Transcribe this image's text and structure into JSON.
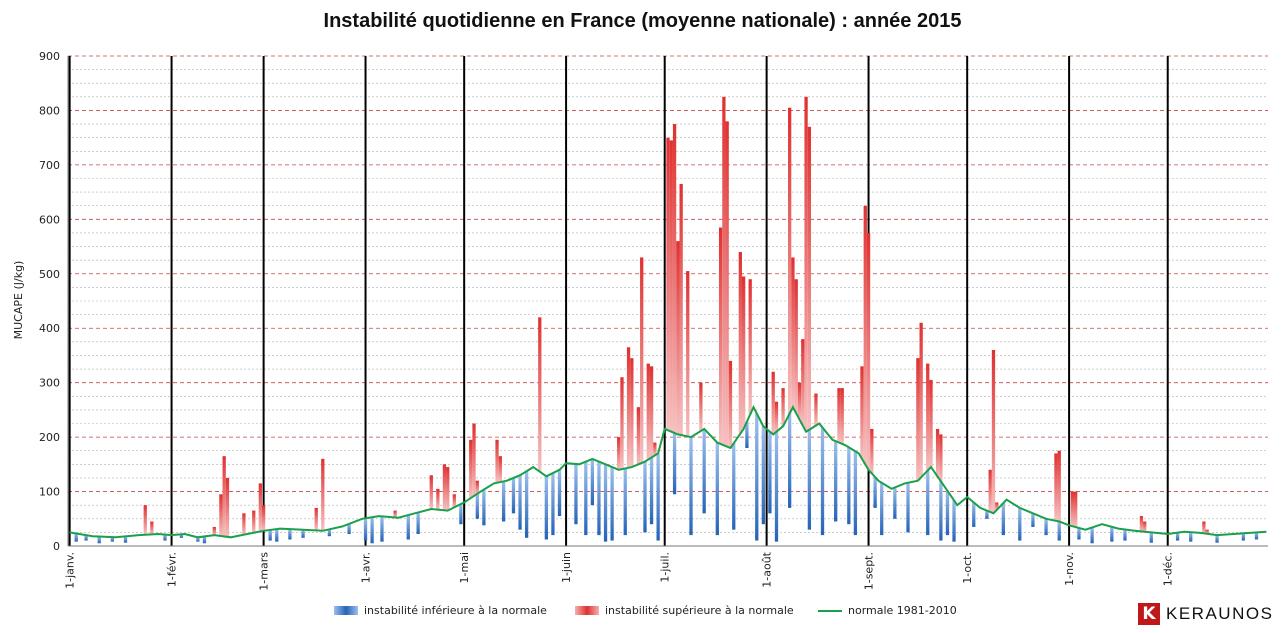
{
  "chart_data": {
    "type": "bar",
    "title": "Instabilité quotidienne en France (moyenne nationale) : année 2015",
    "ylabel": "MUCAPE (J/kg)",
    "xlabel": "",
    "ylim": [
      0,
      900
    ],
    "yticks": [
      0,
      100,
      200,
      300,
      400,
      500,
      600,
      700,
      800,
      900
    ],
    "month_labels": [
      "1-janv.",
      "1-févr.",
      "1-mars",
      "1-avr.",
      "1-mai",
      "1-juin",
      "1-juil.",
      "1-août",
      "1-sept.",
      "1-oct.",
      "1-nov.",
      "1-déc."
    ],
    "month_start_day": [
      1,
      32,
      60,
      91,
      121,
      152,
      182,
      213,
      244,
      274,
      305,
      335
    ],
    "days_in_year": 365,
    "legend": [
      "instabilité inférieure à la normale",
      "instabilité supérieure à la normale",
      "normale 1981-2010"
    ],
    "legend_position": "bottom",
    "grid": true,
    "series": [
      {
        "name": "normale 1981-2010",
        "color": "#1aa04a",
        "points": [
          [
            1,
            25
          ],
          [
            8,
            18
          ],
          [
            15,
            16
          ],
          [
            22,
            20
          ],
          [
            28,
            22
          ],
          [
            32,
            20
          ],
          [
            36,
            22
          ],
          [
            40,
            16
          ],
          [
            45,
            20
          ],
          [
            50,
            16
          ],
          [
            55,
            22
          ],
          [
            60,
            28
          ],
          [
            65,
            32
          ],
          [
            72,
            30
          ],
          [
            78,
            28
          ],
          [
            84,
            36
          ],
          [
            90,
            50
          ],
          [
            95,
            55
          ],
          [
            101,
            52
          ],
          [
            106,
            60
          ],
          [
            111,
            68
          ],
          [
            116,
            65
          ],
          [
            121,
            80
          ],
          [
            126,
            100
          ],
          [
            130,
            115
          ],
          [
            134,
            120
          ],
          [
            138,
            130
          ],
          [
            142,
            145
          ],
          [
            146,
            128
          ],
          [
            150,
            140
          ],
          [
            152,
            152
          ],
          [
            156,
            150
          ],
          [
            160,
            160
          ],
          [
            164,
            150
          ],
          [
            168,
            140
          ],
          [
            172,
            145
          ],
          [
            176,
            155
          ],
          [
            180,
            170
          ],
          [
            182,
            215
          ],
          [
            186,
            205
          ],
          [
            190,
            200
          ],
          [
            194,
            215
          ],
          [
            198,
            190
          ],
          [
            202,
            180
          ],
          [
            206,
            215
          ],
          [
            209,
            255
          ],
          [
            212,
            220
          ],
          [
            215,
            205
          ],
          [
            218,
            220
          ],
          [
            221,
            255
          ],
          [
            225,
            210
          ],
          [
            229,
            225
          ],
          [
            233,
            195
          ],
          [
            237,
            185
          ],
          [
            241,
            170
          ],
          [
            244,
            140
          ],
          [
            247,
            120
          ],
          [
            251,
            105
          ],
          [
            255,
            115
          ],
          [
            259,
            120
          ],
          [
            263,
            145
          ],
          [
            267,
            110
          ],
          [
            271,
            75
          ],
          [
            274,
            90
          ],
          [
            278,
            70
          ],
          [
            282,
            60
          ],
          [
            286,
            85
          ],
          [
            290,
            70
          ],
          [
            294,
            60
          ],
          [
            298,
            50
          ],
          [
            302,
            45
          ],
          [
            305,
            38
          ],
          [
            310,
            30
          ],
          [
            315,
            40
          ],
          [
            320,
            32
          ],
          [
            325,
            28
          ],
          [
            330,
            25
          ],
          [
            335,
            22
          ],
          [
            340,
            26
          ],
          [
            345,
            24
          ],
          [
            350,
            20
          ],
          [
            355,
            22
          ],
          [
            360,
            24
          ],
          [
            365,
            26
          ]
        ]
      },
      {
        "name": "instabilité supérieure à la normale",
        "color": "#e03030",
        "points": [
          [
            24,
            75
          ],
          [
            26,
            45
          ],
          [
            45,
            35
          ],
          [
            47,
            95
          ],
          [
            48,
            165
          ],
          [
            49,
            125
          ],
          [
            54,
            60
          ],
          [
            57,
            65
          ],
          [
            59,
            115
          ],
          [
            60,
            75
          ],
          [
            76,
            70
          ],
          [
            78,
            160
          ],
          [
            100,
            65
          ],
          [
            111,
            130
          ],
          [
            113,
            105
          ],
          [
            115,
            150
          ],
          [
            116,
            145
          ],
          [
            118,
            95
          ],
          [
            123,
            195
          ],
          [
            124,
            225
          ],
          [
            125,
            120
          ],
          [
            131,
            195
          ],
          [
            132,
            165
          ],
          [
            144,
            420
          ],
          [
            168,
            200
          ],
          [
            169,
            310
          ],
          [
            171,
            365
          ],
          [
            172,
            345
          ],
          [
            174,
            255
          ],
          [
            175,
            530
          ],
          [
            177,
            335
          ],
          [
            178,
            330
          ],
          [
            179,
            190
          ],
          [
            183,
            750
          ],
          [
            184,
            745
          ],
          [
            185,
            775
          ],
          [
            186,
            560
          ],
          [
            187,
            665
          ],
          [
            189,
            505
          ],
          [
            193,
            300
          ],
          [
            199,
            585
          ],
          [
            200,
            825
          ],
          [
            201,
            780
          ],
          [
            202,
            340
          ],
          [
            205,
            540
          ],
          [
            206,
            495
          ],
          [
            208,
            490
          ],
          [
            215,
            320
          ],
          [
            216,
            265
          ],
          [
            218,
            290
          ],
          [
            220,
            805
          ],
          [
            221,
            530
          ],
          [
            222,
            490
          ],
          [
            223,
            300
          ],
          [
            224,
            380
          ],
          [
            225,
            825
          ],
          [
            226,
            770
          ],
          [
            228,
            280
          ],
          [
            235,
            290
          ],
          [
            236,
            290
          ],
          [
            242,
            330
          ],
          [
            243,
            625
          ],
          [
            244,
            575
          ],
          [
            245,
            215
          ],
          [
            259,
            345
          ],
          [
            260,
            410
          ],
          [
            262,
            335
          ],
          [
            263,
            305
          ],
          [
            265,
            215
          ],
          [
            266,
            205
          ],
          [
            281,
            140
          ],
          [
            282,
            360
          ],
          [
            283,
            80
          ],
          [
            301,
            170
          ],
          [
            302,
            175
          ],
          [
            306,
            100
          ],
          [
            307,
            100
          ],
          [
            327,
            55
          ],
          [
            328,
            45
          ],
          [
            346,
            45
          ],
          [
            347,
            30
          ]
        ]
      },
      {
        "name": "instabilité inférieure à la normale",
        "color": "#2563b8",
        "points": [
          [
            3,
            8
          ],
          [
            6,
            10
          ],
          [
            10,
            5
          ],
          [
            14,
            8
          ],
          [
            18,
            6
          ],
          [
            30,
            10
          ],
          [
            35,
            15
          ],
          [
            40,
            8
          ],
          [
            42,
            5
          ],
          [
            62,
            10
          ],
          [
            64,
            8
          ],
          [
            68,
            12
          ],
          [
            72,
            15
          ],
          [
            80,
            18
          ],
          [
            86,
            22
          ],
          [
            91,
            10
          ],
          [
            93,
            5
          ],
          [
            96,
            8
          ],
          [
            104,
            12
          ],
          [
            107,
            22
          ],
          [
            120,
            40
          ],
          [
            125,
            50
          ],
          [
            127,
            38
          ],
          [
            133,
            45
          ],
          [
            136,
            60
          ],
          [
            138,
            30
          ],
          [
            140,
            15
          ],
          [
            146,
            12
          ],
          [
            148,
            20
          ],
          [
            150,
            55
          ],
          [
            155,
            40
          ],
          [
            158,
            20
          ],
          [
            160,
            75
          ],
          [
            162,
            20
          ],
          [
            164,
            8
          ],
          [
            166,
            10
          ],
          [
            170,
            20
          ],
          [
            176,
            25
          ],
          [
            178,
            40
          ],
          [
            180,
            10
          ],
          [
            185,
            95
          ],
          [
            190,
            20
          ],
          [
            194,
            60
          ],
          [
            198,
            20
          ],
          [
            203,
            30
          ],
          [
            207,
            180
          ],
          [
            210,
            10
          ],
          [
            212,
            40
          ],
          [
            214,
            60
          ],
          [
            216,
            8
          ],
          [
            220,
            70
          ],
          [
            226,
            30
          ],
          [
            230,
            20
          ],
          [
            234,
            45
          ],
          [
            238,
            40
          ],
          [
            240,
            20
          ],
          [
            246,
            70
          ],
          [
            248,
            20
          ],
          [
            252,
            50
          ],
          [
            256,
            25
          ],
          [
            262,
            20
          ],
          [
            266,
            10
          ],
          [
            268,
            20
          ],
          [
            270,
            8
          ],
          [
            276,
            35
          ],
          [
            280,
            50
          ],
          [
            285,
            20
          ],
          [
            290,
            10
          ],
          [
            294,
            35
          ],
          [
            298,
            20
          ],
          [
            302,
            10
          ],
          [
            308,
            12
          ],
          [
            312,
            5
          ],
          [
            318,
            8
          ],
          [
            322,
            10
          ],
          [
            330,
            6
          ],
          [
            338,
            10
          ],
          [
            342,
            8
          ],
          [
            350,
            6
          ],
          [
            358,
            10
          ],
          [
            362,
            12
          ]
        ]
      }
    ]
  },
  "logo": {
    "text": "KERAUNOS"
  }
}
